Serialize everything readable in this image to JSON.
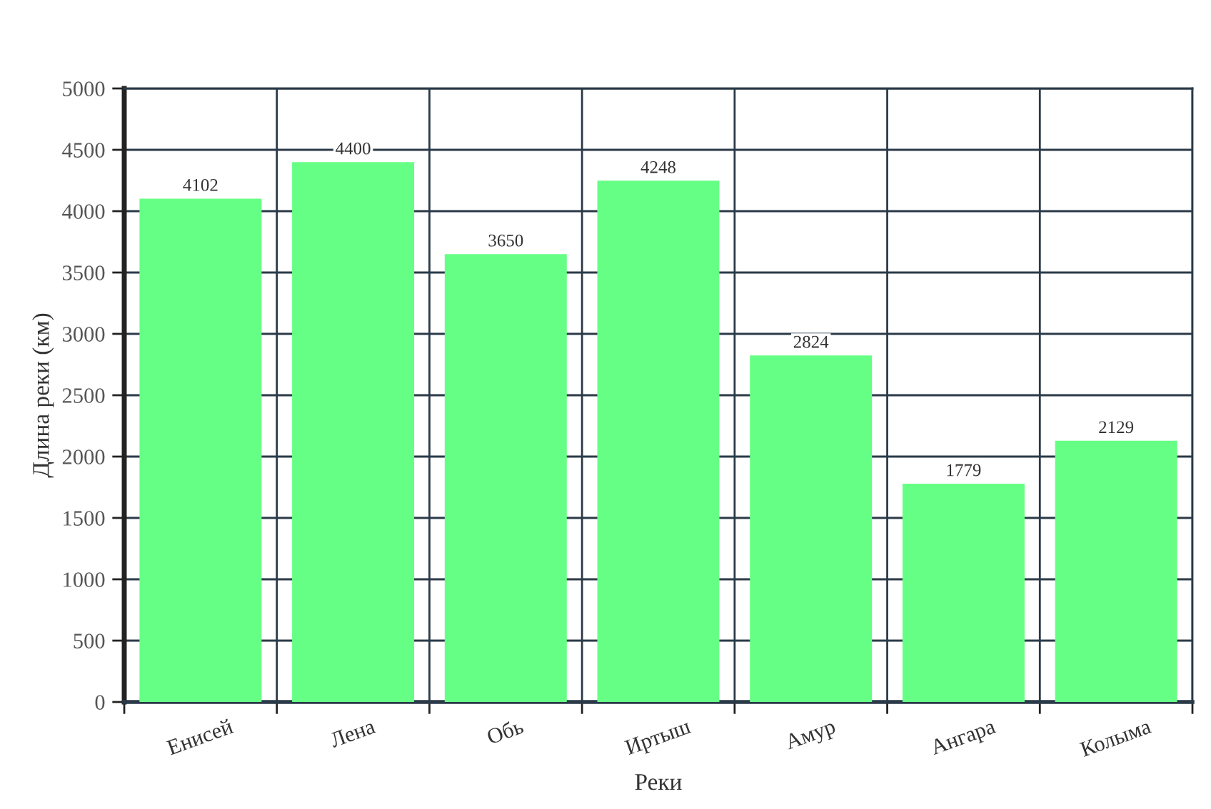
{
  "chart_data": {
    "type": "bar",
    "xlabel": "Реки",
    "ylabel": "Длина реки (км)",
    "categories": [
      "Енисей",
      "Лена",
      "Обь",
      "Иртыш",
      "Амур",
      "Ангара",
      "Колыма"
    ],
    "values": [
      4102,
      4400,
      3650,
      4248,
      2824,
      1779,
      2129
    ],
    "color": "#66ff85",
    "ylim": [
      0,
      5000
    ],
    "yticks": [
      0,
      500,
      1000,
      1500,
      2000,
      2500,
      3000,
      3500,
      4000,
      4500,
      5000
    ],
    "grid": true,
    "data_labels": true
  }
}
